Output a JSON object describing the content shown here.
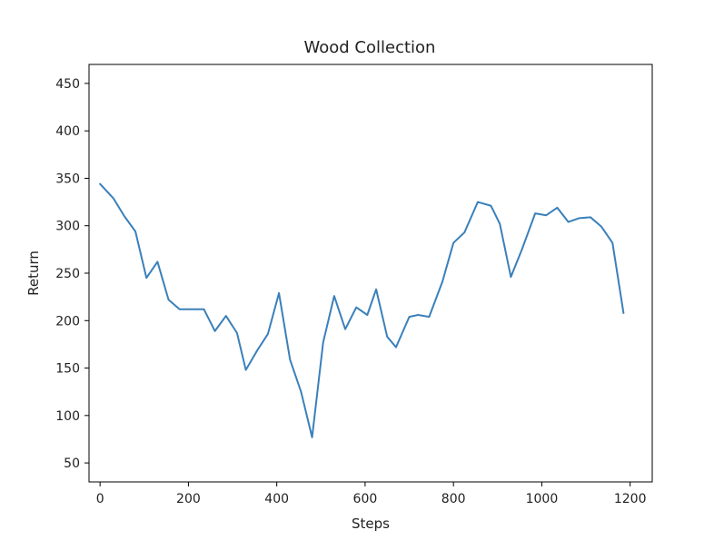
{
  "chart_data": {
    "type": "line",
    "title": "Wood Collection",
    "xlabel": "Steps",
    "ylabel": "Return",
    "xlim": [
      -25,
      1250
    ],
    "ylim": [
      30,
      470
    ],
    "xticks": [
      0,
      200,
      400,
      600,
      800,
      1000,
      1200
    ],
    "yticks": [
      50,
      100,
      150,
      200,
      250,
      300,
      350,
      400,
      450
    ],
    "grid": false,
    "line_color": "#3a80ba",
    "series": [
      {
        "x": [
          0,
          30,
          55,
          80,
          105,
          130,
          155,
          180,
          205,
          235,
          260,
          285,
          310,
          330,
          355,
          380,
          405,
          430,
          455,
          480,
          505,
          530,
          555,
          580,
          605,
          625,
          650,
          670,
          700,
          720,
          745,
          775,
          800,
          825,
          855,
          885,
          905,
          930,
          955,
          985,
          1010,
          1035,
          1060,
          1085,
          1110,
          1135,
          1160,
          1185
        ],
        "y": [
          344,
          329,
          310,
          294,
          245,
          262,
          222,
          212,
          212,
          212,
          189,
          205,
          187,
          148,
          168,
          186,
          229,
          159,
          125,
          77,
          177,
          226,
          191,
          214,
          206,
          233,
          183,
          172,
          204,
          206,
          204,
          241,
          282,
          293,
          325,
          321,
          302,
          246,
          275,
          313,
          311,
          319,
          304,
          308,
          309,
          299,
          282,
          208
        ]
      }
    ]
  }
}
